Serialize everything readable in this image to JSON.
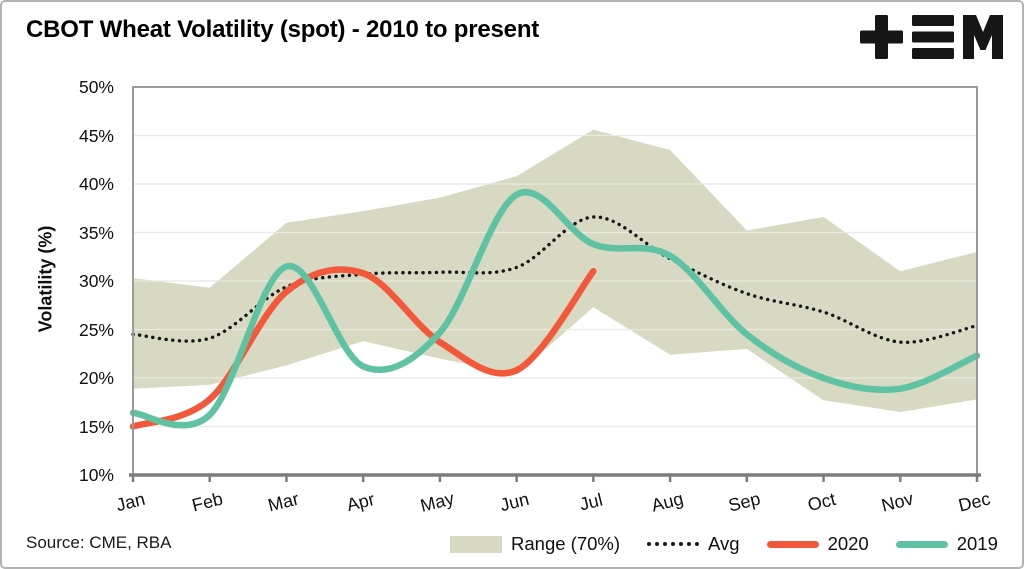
{
  "header": {
    "title": "CBOT Wheat Volatility (spot) - 2010 to present",
    "logo_name": "tem-logo"
  },
  "footer": {
    "source": "Source: CME, RBA"
  },
  "chart_data": {
    "type": "line",
    "title": "CBOT Wheat Volatility (spot) - 2010 to present",
    "xlabel": "",
    "ylabel": "Volatility (%)",
    "ylim": [
      10,
      50
    ],
    "ytick_step": 5,
    "ytick_suffix": "%",
    "grid": true,
    "legend_position": "bottom",
    "categories": [
      "Jan",
      "Feb",
      "Mar",
      "Apr",
      "May",
      "Jun",
      "Jul",
      "Aug",
      "Sep",
      "Oct",
      "Nov",
      "Dec"
    ],
    "series": [
      {
        "name": "Range (70%)",
        "type": "band",
        "color": "#d8d9c2",
        "upper": [
          30.3,
          29.3,
          36.0,
          37.2,
          38.6,
          40.8,
          45.6,
          43.5,
          35.2,
          36.6,
          31.0,
          33.0
        ],
        "lower": [
          18.9,
          19.3,
          21.3,
          23.8,
          22.0,
          20.4,
          27.3,
          22.4,
          23.0,
          17.7,
          16.5,
          17.8
        ]
      },
      {
        "name": "Avg",
        "type": "dotted-line",
        "color": "#161616",
        "values": [
          24.5,
          24.1,
          29.4,
          30.7,
          30.9,
          31.4,
          36.6,
          32.3,
          28.7,
          26.8,
          23.7,
          25.4
        ]
      },
      {
        "name": "2020",
        "type": "line",
        "color": "#f2593a",
        "values": [
          15.0,
          17.8,
          28.9,
          30.8,
          23.7,
          20.8,
          31.0,
          null,
          null,
          null,
          null,
          null
        ]
      },
      {
        "name": "2019",
        "type": "line",
        "color": "#5fc3a3",
        "values": [
          16.4,
          16.2,
          31.5,
          21.2,
          24.7,
          38.9,
          33.8,
          32.6,
          24.5,
          20.0,
          18.9,
          22.3
        ]
      }
    ]
  }
}
